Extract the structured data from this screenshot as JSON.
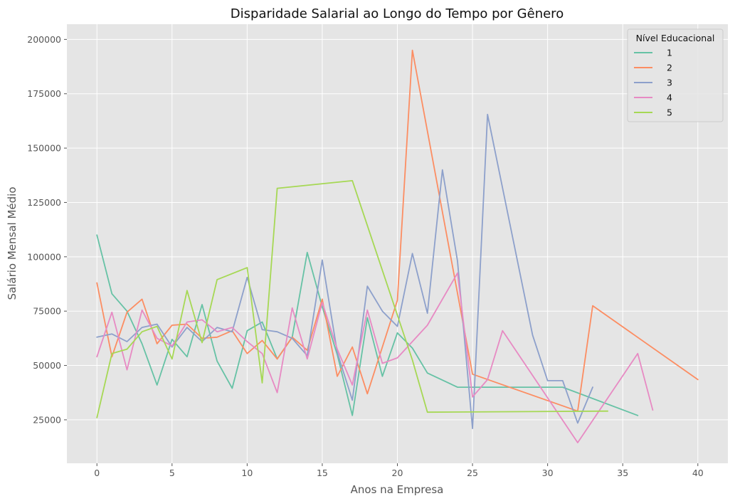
{
  "chart_data": {
    "type": "line",
    "title": "Disparidade Salarial ao Longo do Tempo por Gênero",
    "xlabel": "Anos na Empresa",
    "ylabel": "Salário Mensal Médio",
    "xlim": [
      -2,
      42
    ],
    "ylim": [
      5000,
      207000
    ],
    "xticks": [
      0,
      5,
      10,
      15,
      20,
      25,
      30,
      35,
      40
    ],
    "yticks": [
      25000,
      50000,
      75000,
      100000,
      125000,
      150000,
      175000,
      200000
    ],
    "grid": true,
    "legend": {
      "title": "Nível Educacional",
      "position": "top-right"
    },
    "series": [
      {
        "name": "1",
        "color": "#66c2a5",
        "x": [
          0,
          1,
          2,
          3,
          4,
          5,
          6,
          7,
          8,
          9,
          10,
          11,
          12,
          13,
          14,
          15,
          16,
          17,
          18,
          19,
          20,
          21,
          22,
          24,
          31,
          36
        ],
        "y": [
          110000,
          83000,
          75000,
          60000,
          41000,
          62000,
          54000,
          78000,
          52000,
          39500,
          66000,
          70000,
          53000,
          63000,
          102000,
          77000,
          55000,
          27000,
          72000,
          45000,
          65000,
          58000,
          46500,
          40000,
          40000,
          27000
        ]
      },
      {
        "name": "2",
        "color": "#fc8d62",
        "x": [
          0,
          1,
          2,
          3,
          4,
          5,
          6,
          7,
          8,
          9,
          10,
          11,
          12,
          13,
          14,
          15,
          16,
          17,
          18,
          20,
          21,
          25,
          32,
          33,
          40
        ],
        "y": [
          88000,
          54000,
          74500,
          80500,
          60000,
          68500,
          69000,
          62500,
          63000,
          66000,
          55500,
          61500,
          53000,
          63000,
          57000,
          80500,
          45000,
          58500,
          37000,
          80000,
          195000,
          46000,
          29000,
          77500,
          43500
        ]
      },
      {
        "name": "3",
        "color": "#8da0cb",
        "x": [
          0,
          1,
          2,
          3,
          4,
          5,
          6,
          7,
          8,
          9,
          10,
          11,
          12,
          13,
          14,
          15,
          16,
          17,
          18,
          19,
          20,
          21,
          22,
          23,
          24,
          25,
          26,
          29,
          30,
          31,
          32,
          33
        ],
        "y": [
          63000,
          64500,
          61000,
          67500,
          69000,
          58500,
          67500,
          61000,
          67500,
          65500,
          90500,
          66500,
          65500,
          62500,
          54500,
          98500,
          56000,
          34000,
          86500,
          75000,
          68000,
          101500,
          74000,
          140000,
          98000,
          21000,
          165500,
          64000,
          43000,
          43000,
          23500,
          40000
        ]
      },
      {
        "name": "4",
        "color": "#e78ac3",
        "x": [
          0,
          1,
          2,
          3,
          4,
          5,
          6,
          7,
          8,
          9,
          10,
          11,
          12,
          13,
          14,
          15,
          16,
          17,
          18,
          19,
          20,
          22,
          24,
          25,
          26,
          27,
          32,
          36,
          37
        ],
        "y": [
          54000,
          74500,
          48000,
          75500,
          62500,
          59000,
          70000,
          71000,
          65500,
          67500,
          61000,
          55500,
          37500,
          76500,
          53000,
          79000,
          57500,
          41000,
          75500,
          51000,
          53500,
          68500,
          92500,
          35500,
          43500,
          66000,
          14500,
          55500,
          29500
        ]
      },
      {
        "name": "5",
        "color": "#a6d854",
        "x": [
          0,
          1,
          2,
          3,
          4,
          5,
          6,
          7,
          8,
          10,
          11,
          12,
          17,
          21,
          22,
          34
        ],
        "y": [
          26000,
          55500,
          57500,
          65500,
          68000,
          53000,
          84500,
          60500,
          89500,
          95000,
          42000,
          131500,
          135000,
          52500,
          28500,
          29000
        ]
      }
    ]
  }
}
